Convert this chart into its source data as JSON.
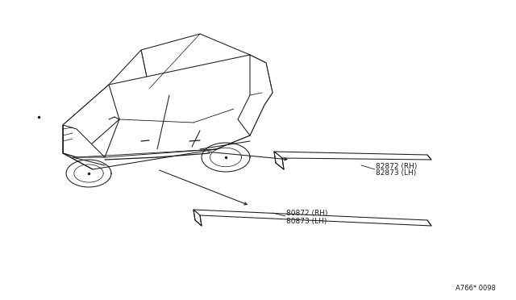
{
  "background_color": "#ffffff",
  "fig_width": 6.4,
  "fig_height": 3.72,
  "dpi": 100,
  "parts": [
    {
      "name": "rear_door_moulding",
      "label_line1": "82872 (RH)",
      "label_line2": "82873 (LH)"
    },
    {
      "name": "front_door_moulding",
      "label_line1": "80872 (RH)",
      "label_line2": "80873 (LH)"
    }
  ],
  "watermark": "A766* 0098",
  "font_size_labels": 6.5,
  "font_size_watermark": 6.0,
  "line_color": "#1a1a1a",
  "line_width": 0.75
}
